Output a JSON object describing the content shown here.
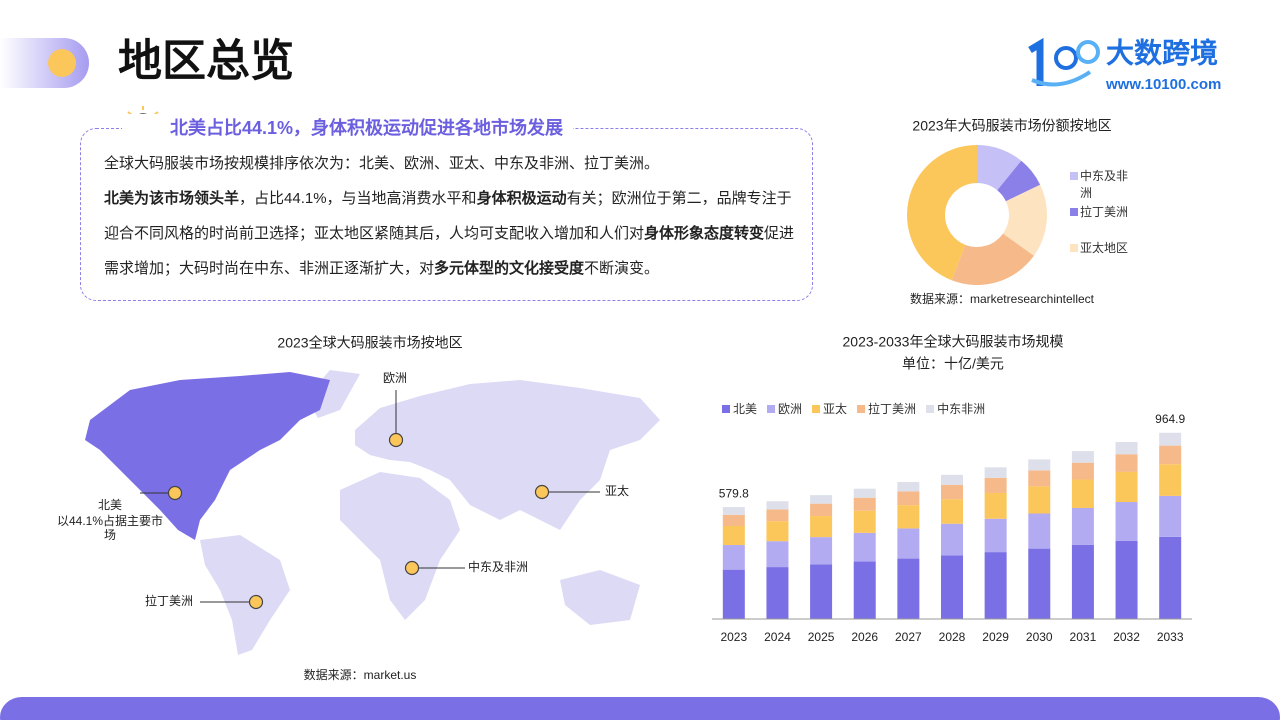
{
  "header": {
    "title": "地区总览",
    "brand": "大数跨境",
    "url": "www.10100.com"
  },
  "summary": {
    "title": "北美占比44.1%，身体积极运动促进各地市场发展",
    "paragraphs": [
      [
        {
          "text": "全球大码服装市场按规模排序依次为：北美、欧洲、亚太、中东及非洲、拉丁美洲。",
          "bold": false
        }
      ],
      [
        {
          "text": "北美为该市场领头羊",
          "bold": true
        },
        {
          "text": "，占比44.1%，与当地高消费水平和",
          "bold": false
        },
        {
          "text": "身体积极运动",
          "bold": true
        },
        {
          "text": "有关；欧洲位于第二，品牌专注于迎合不同风格的时尚前卫选择；亚太地区紧随其后，人均可支配收入增加和人们对",
          "bold": false
        },
        {
          "text": "身体形象态度转变",
          "bold": true
        },
        {
          "text": "促进需求增加；大码时尚在中东、非洲正逐渐扩大，对",
          "bold": false
        },
        {
          "text": "多元体型的文化接受度",
          "bold": true
        },
        {
          "text": "不断演变。",
          "bold": false
        }
      ]
    ]
  },
  "map": {
    "title": "2023全球大码服装市场按地区",
    "source": "数据来源：market.us",
    "labels": {
      "europe": "欧洲",
      "asia": "亚太",
      "mea": "中东及非洲",
      "latam": "拉丁美洲",
      "na": "北美",
      "na_note": "以44.1%占据主要市场"
    }
  },
  "chart_data": [
    {
      "type": "pie",
      "title": "2023年大码服装市场份额按地区",
      "source": "数据来源：marketresearchintellect",
      "donut": true,
      "categories": [
        "中东及非洲",
        "拉丁美洲",
        "亚太地区",
        null,
        null
      ],
      "values": [
        10.9,
        7,
        17,
        21,
        44.1
      ],
      "colors": [
        "#c5c0f5",
        "#8b7fe8",
        "#fde3c0",
        "#f5b98a",
        "#fcc75a"
      ]
    },
    {
      "type": "stacked_bar",
      "title": "2023-2033年全球大码服装市场规模",
      "subtitle": "单位：十亿/美元",
      "categories": [
        "2023",
        "2024",
        "2025",
        "2026",
        "2027",
        "2028",
        "2029",
        "2030",
        "2031",
        "2032",
        "2033"
      ],
      "ylim": [
        0,
        1000
      ],
      "series": [
        {
          "name": "北美",
          "color": "#7b6fe6",
          "values": [
            255.7,
            269.0,
            283.1,
            297.7,
            313.1,
            329.4,
            346.6,
            364.7,
            383.7,
            404.4,
            425.5
          ]
        },
        {
          "name": "欧洲",
          "color": "#b3abf2",
          "values": [
            127.6,
            134.2,
            141.2,
            148.5,
            156.2,
            164.3,
            172.9,
            181.9,
            191.4,
            201.7,
            212.3
          ]
        },
        {
          "name": "亚太",
          "color": "#fcc75a",
          "values": [
            98.6,
            103.7,
            109.1,
            114.8,
            120.7,
            127.0,
            133.6,
            140.6,
            147.9,
            155.9,
            164.0
          ]
        },
        {
          "name": "拉丁美洲",
          "color": "#f5b98a",
          "values": [
            58.0,
            61.0,
            64.2,
            67.5,
            71.0,
            74.7,
            78.6,
            82.7,
            87.0,
            91.7,
            96.5
          ]
        },
        {
          "name": "中东非洲",
          "color": "#dde0ea",
          "values": [
            39.9,
            42.1,
            44.3,
            46.6,
            49.0,
            51.5,
            54.2,
            57.1,
            60.0,
            63.3,
            66.6
          ]
        }
      ],
      "annotations": [
        {
          "category": "2023",
          "label": "579.8"
        },
        {
          "category": "2033",
          "label": "964.9"
        }
      ]
    }
  ]
}
